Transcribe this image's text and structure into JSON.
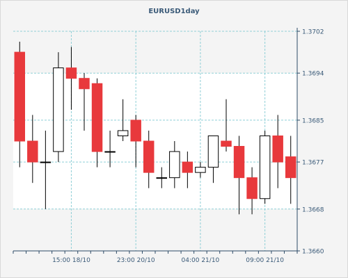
{
  "title": "EURUSD1day",
  "chart_data": {
    "type": "candlestick",
    "title": "EURUSD1day",
    "ylim": [
      1.366,
      1.3702
    ],
    "y_ticks": [
      "1.3702",
      "1.3694",
      "1.3685",
      "1.3677",
      "1.3668",
      "1.3660"
    ],
    "y_tick_values": [
      1.3702,
      1.3694,
      1.3685,
      1.3677,
      1.3668,
      1.366
    ],
    "x_ticks": [
      {
        "index": 4.5,
        "label": "15:00 18/10"
      },
      {
        "index": 9.5,
        "label": "23:00 20/10"
      },
      {
        "index": 14.5,
        "label": "04:00 21/10"
      },
      {
        "index": 19.5,
        "label": "09:00 21/10"
      }
    ],
    "grid": true,
    "colors": {
      "up_fill": "#ffffff",
      "down_fill": "#e8393c",
      "outline": "#000000",
      "grid": "#8fcfd6",
      "axis_text": "#3a5a78",
      "plot_bg": "#ffffff",
      "band_bg": "#f4f4f4"
    },
    "candles": [
      {
        "open": 1.3698,
        "high": 1.37,
        "low": 1.3676,
        "close": 1.3681
      },
      {
        "open": 1.3681,
        "high": 1.3686,
        "low": 1.3673,
        "close": 1.3677
      },
      {
        "open": 1.3677,
        "high": 1.3683,
        "low": 1.3668,
        "close": 1.3677
      },
      {
        "open": 1.3679,
        "high": 1.3698,
        "low": 1.3677,
        "close": 1.3695
      },
      {
        "open": 1.3695,
        "high": 1.3699,
        "low": 1.3687,
        "close": 1.3693
      },
      {
        "open": 1.3693,
        "high": 1.3694,
        "low": 1.3683,
        "close": 1.3691
      },
      {
        "open": 1.3692,
        "high": 1.3693,
        "low": 1.3676,
        "close": 1.3679
      },
      {
        "open": 1.3679,
        "high": 1.3683,
        "low": 1.3676,
        "close": 1.3679
      },
      {
        "open": 1.3682,
        "high": 1.3689,
        "low": 1.3681,
        "close": 1.3683
      },
      {
        "open": 1.3685,
        "high": 1.3686,
        "low": 1.3676,
        "close": 1.3681
      },
      {
        "open": 1.3681,
        "high": 1.3683,
        "low": 1.3672,
        "close": 1.3675
      },
      {
        "open": 1.3674,
        "high": 1.3676,
        "low": 1.3672,
        "close": 1.3674
      },
      {
        "open": 1.3674,
        "high": 1.3681,
        "low": 1.3672,
        "close": 1.3679
      },
      {
        "open": 1.3677,
        "high": 1.3679,
        "low": 1.3672,
        "close": 1.3675
      },
      {
        "open": 1.3675,
        "high": 1.3677,
        "low": 1.3674,
        "close": 1.3676
      },
      {
        "open": 1.3676,
        "high": 1.3682,
        "low": 1.3673,
        "close": 1.3682
      },
      {
        "open": 1.3681,
        "high": 1.3689,
        "low": 1.3679,
        "close": 1.368
      },
      {
        "open": 1.368,
        "high": 1.3682,
        "low": 1.3667,
        "close": 1.3674
      },
      {
        "open": 1.3674,
        "high": 1.3676,
        "low": 1.3667,
        "close": 1.367
      },
      {
        "open": 1.367,
        "high": 1.3683,
        "low": 1.3669,
        "close": 1.3682
      },
      {
        "open": 1.3682,
        "high": 1.3686,
        "low": 1.3672,
        "close": 1.3677
      },
      {
        "open": 1.3678,
        "high": 1.3682,
        "low": 1.3669,
        "close": 1.3674
      }
    ]
  }
}
